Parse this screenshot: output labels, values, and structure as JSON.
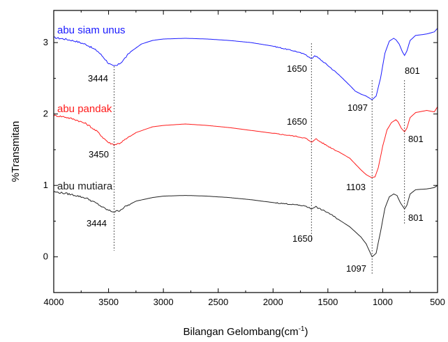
{
  "chart_data": {
    "type": "line",
    "xlabel": "Bilangan Gelombang(cm",
    "xlabel_sup": "-1",
    "xlabel_suffix": ")",
    "ylabel": "%Transmitan",
    "xlim": [
      4000,
      500
    ],
    "ylim": [
      -0.5,
      3.45
    ],
    "x_ticks": [
      4000,
      3500,
      3000,
      2500,
      2000,
      1500,
      1000,
      500
    ],
    "y_ticks": [
      0,
      1,
      2,
      3
    ],
    "grid": false,
    "series": [
      {
        "name": "abu siam unus",
        "color": "#1a1aff",
        "points": [
          [
            4000,
            3.07
          ],
          [
            3900,
            3.05
          ],
          [
            3800,
            3.02
          ],
          [
            3700,
            2.97
          ],
          [
            3600,
            2.88
          ],
          [
            3550,
            2.8
          ],
          [
            3500,
            2.71
          ],
          [
            3460,
            2.67
          ],
          [
            3420,
            2.68
          ],
          [
            3380,
            2.73
          ],
          [
            3300,
            2.87
          ],
          [
            3200,
            2.98
          ],
          [
            3100,
            3.03
          ],
          [
            3000,
            3.05
          ],
          [
            2800,
            3.06
          ],
          [
            2600,
            3.05
          ],
          [
            2400,
            3.03
          ],
          [
            2200,
            3.0
          ],
          [
            2000,
            2.95
          ],
          [
            1800,
            2.88
          ],
          [
            1700,
            2.83
          ],
          [
            1650,
            2.77
          ],
          [
            1620,
            2.82
          ],
          [
            1600,
            2.8
          ],
          [
            1500,
            2.68
          ],
          [
            1400,
            2.55
          ],
          [
            1300,
            2.4
          ],
          [
            1250,
            2.32
          ],
          [
            1200,
            2.28
          ],
          [
            1150,
            2.25
          ],
          [
            1097,
            2.2
          ],
          [
            1060,
            2.25
          ],
          [
            1020,
            2.5
          ],
          [
            980,
            2.85
          ],
          [
            940,
            3.02
          ],
          [
            900,
            3.06
          ],
          [
            880,
            3.04
          ],
          [
            850,
            2.98
          ],
          [
            820,
            2.87
          ],
          [
            801,
            2.82
          ],
          [
            780,
            2.88
          ],
          [
            750,
            3.03
          ],
          [
            700,
            3.1
          ],
          [
            600,
            3.12
          ],
          [
            530,
            3.15
          ],
          [
            500,
            3.2
          ]
        ]
      },
      {
        "name": "abu pandak",
        "color": "#ff1a1a",
        "points": [
          [
            4000,
            1.98
          ],
          [
            3900,
            1.96
          ],
          [
            3800,
            1.92
          ],
          [
            3700,
            1.86
          ],
          [
            3600,
            1.75
          ],
          [
            3550,
            1.67
          ],
          [
            3500,
            1.6
          ],
          [
            3450,
            1.57
          ],
          [
            3400,
            1.59
          ],
          [
            3350,
            1.64
          ],
          [
            3250,
            1.74
          ],
          [
            3100,
            1.82
          ],
          [
            3000,
            1.84
          ],
          [
            2800,
            1.86
          ],
          [
            2600,
            1.84
          ],
          [
            2400,
            1.81
          ],
          [
            2200,
            1.77
          ],
          [
            2000,
            1.73
          ],
          [
            1800,
            1.69
          ],
          [
            1700,
            1.66
          ],
          [
            1650,
            1.6
          ],
          [
            1610,
            1.66
          ],
          [
            1600,
            1.64
          ],
          [
            1500,
            1.55
          ],
          [
            1400,
            1.47
          ],
          [
            1300,
            1.38
          ],
          [
            1250,
            1.3
          ],
          [
            1200,
            1.22
          ],
          [
            1150,
            1.15
          ],
          [
            1103,
            1.11
          ],
          [
            1070,
            1.12
          ],
          [
            1040,
            1.25
          ],
          [
            1000,
            1.55
          ],
          [
            960,
            1.78
          ],
          [
            920,
            1.88
          ],
          [
            880,
            1.92
          ],
          [
            860,
            1.89
          ],
          [
            830,
            1.8
          ],
          [
            801,
            1.75
          ],
          [
            780,
            1.8
          ],
          [
            750,
            1.95
          ],
          [
            700,
            2.02
          ],
          [
            600,
            2.05
          ],
          [
            530,
            2.03
          ],
          [
            500,
            2.1
          ]
        ]
      },
      {
        "name": "abu mutiara",
        "color": "#222222",
        "points": [
          [
            4000,
            0.91
          ],
          [
            3900,
            0.89
          ],
          [
            3800,
            0.86
          ],
          [
            3700,
            0.82
          ],
          [
            3600,
            0.74
          ],
          [
            3550,
            0.69
          ],
          [
            3500,
            0.65
          ],
          [
            3450,
            0.63
          ],
          [
            3400,
            0.65
          ],
          [
            3350,
            0.7
          ],
          [
            3250,
            0.78
          ],
          [
            3100,
            0.83
          ],
          [
            3000,
            0.85
          ],
          [
            2800,
            0.86
          ],
          [
            2600,
            0.85
          ],
          [
            2400,
            0.83
          ],
          [
            2200,
            0.8
          ],
          [
            2000,
            0.76
          ],
          [
            1800,
            0.73
          ],
          [
            1700,
            0.71
          ],
          [
            1650,
            0.67
          ],
          [
            1610,
            0.71
          ],
          [
            1600,
            0.69
          ],
          [
            1500,
            0.62
          ],
          [
            1400,
            0.52
          ],
          [
            1300,
            0.42
          ],
          [
            1250,
            0.35
          ],
          [
            1200,
            0.28
          ],
          [
            1150,
            0.18
          ],
          [
            1097,
            0.0
          ],
          [
            1060,
            0.05
          ],
          [
            1020,
            0.35
          ],
          [
            980,
            0.68
          ],
          [
            940,
            0.84
          ],
          [
            900,
            0.88
          ],
          [
            870,
            0.86
          ],
          [
            840,
            0.76
          ],
          [
            801,
            0.67
          ],
          [
            780,
            0.72
          ],
          [
            750,
            0.88
          ],
          [
            700,
            0.94
          ],
          [
            600,
            0.95
          ],
          [
            530,
            0.97
          ],
          [
            500,
            1.0
          ]
        ]
      }
    ],
    "peak_markers": [
      3450,
      1650,
      1097,
      801
    ],
    "peak_labels": [
      {
        "text": "3444",
        "series": "abu siam unus"
      },
      {
        "text": "1650",
        "series": "abu siam unus"
      },
      {
        "text": "1097",
        "series": "abu siam unus"
      },
      {
        "text": "801",
        "series": "abu siam unus"
      },
      {
        "text": "3450",
        "series": "abu pandak"
      },
      {
        "text": "1650",
        "series": "abu pandak"
      },
      {
        "text": "1103",
        "series": "abu pandak"
      },
      {
        "text": "801",
        "series": "abu pandak"
      },
      {
        "text": "3444",
        "series": "abu mutiara"
      },
      {
        "text": "1650",
        "series": "abu mutiara"
      },
      {
        "text": "1097",
        "series": "abu mutiara"
      },
      {
        "text": "801",
        "series": "abu mutiara"
      }
    ]
  }
}
